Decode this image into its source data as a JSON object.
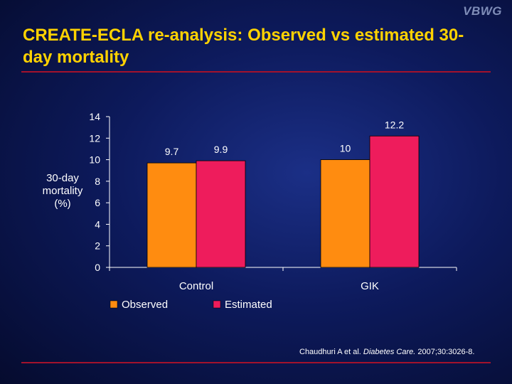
{
  "logo": "VBWG",
  "title": "CREATE-ECLA re-analysis: Observed vs estimated 30-day mortality",
  "citation": {
    "authors": "Chaudhuri A et al.",
    "journal": "Diabetes Care.",
    "details": "2007;30:3026-8."
  },
  "colors": {
    "observed": "#ff8c10",
    "estimated": "#ee1c5c",
    "title": "#ffd200",
    "rule": "#a3122c"
  },
  "chart_data": {
    "type": "bar",
    "title": "",
    "xlabel": "",
    "ylabel": "30-day mortality (%)",
    "categories": [
      "Control",
      "GIK"
    ],
    "series": [
      {
        "name": "Observed",
        "values": [
          9.7,
          10
        ]
      },
      {
        "name": "Estimated",
        "values": [
          9.9,
          12.2
        ]
      }
    ],
    "data_labels": [
      [
        "9.7",
        "10"
      ],
      [
        "9.9",
        "12.2"
      ]
    ],
    "ylim": [
      0,
      14
    ],
    "yticks": [
      0,
      2,
      4,
      6,
      8,
      10,
      12,
      14
    ],
    "grid": false,
    "legend": "bottom-left"
  }
}
